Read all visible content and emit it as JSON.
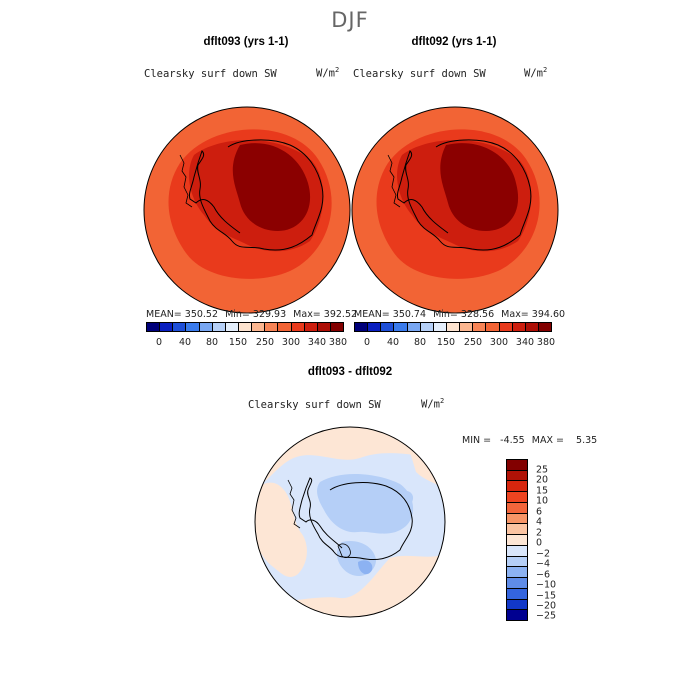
{
  "figure": {
    "season": "DJF"
  },
  "panels": [
    {
      "title": "dflt093 (yrs 1-1)",
      "variable": "Clearsky surf down SW",
      "units_base": "W/m",
      "units_exp": "2",
      "stats": {
        "mean": "MEAN= 350.52",
        "min": "Min= 329.93",
        "max": "Max= 392.52"
      },
      "colorbar_labels": [
        "0",
        "40",
        "80",
        "150",
        "250",
        "300",
        "340",
        "380"
      ]
    },
    {
      "title": "dflt092 (yrs 1-1)",
      "variable": "Clearsky surf down SW",
      "units_base": "W/m",
      "units_exp": "2",
      "stats": {
        "mean": "MEAN= 350.74",
        "min": "Min= 328.56",
        "max": "Max= 394.60"
      },
      "colorbar_labels": [
        "0",
        "40",
        "80",
        "150",
        "250",
        "300",
        "340",
        "380"
      ]
    }
  ],
  "diff": {
    "title": "dflt093 - dflt092",
    "variable": "Clearsky surf down SW",
    "units_base": "W/m",
    "units_exp": "2",
    "min_text": "MIN =   -4.55",
    "max_text": "MAX =    5.35",
    "colorbar_labels": [
      "25",
      "20",
      "15",
      "10",
      "6",
      "4",
      "2",
      "0",
      "−2",
      "−4",
      "−6",
      "−10",
      "−15",
      "−20",
      "−25"
    ]
  },
  "colors": {
    "abs_scale": [
      "#00007a",
      "#0a1fc0",
      "#1e4fd8",
      "#3a7bec",
      "#79a7f2",
      "#b6d0f7",
      "#e4eefb",
      "#fde3cf",
      "#fbb690",
      "#f78456",
      "#f26435",
      "#e93a1c",
      "#cd1e0e",
      "#ad0f06",
      "#820000"
    ],
    "diff_scale": [
      "#820000",
      "#b11206",
      "#d7260e",
      "#ee4420",
      "#f2653b",
      "#f79567",
      "#fbc4a2",
      "#fde6d5",
      "#d9e6fb",
      "#b5cff7",
      "#8cb2f2",
      "#5f8ce8",
      "#3465de",
      "#1238c8",
      "#000090"
    ],
    "ocean_outer": "#f26435",
    "ocean_inner": "#e93a1c",
    "coast_band": "#cd1e0e",
    "ice_interior": "#8b0000",
    "diff_base": "#d9e6fb",
    "diff_warm": "#fde6d5",
    "diff_cool": "#b5cff7",
    "diff_strong_cool": "#8cb2f2"
  }
}
